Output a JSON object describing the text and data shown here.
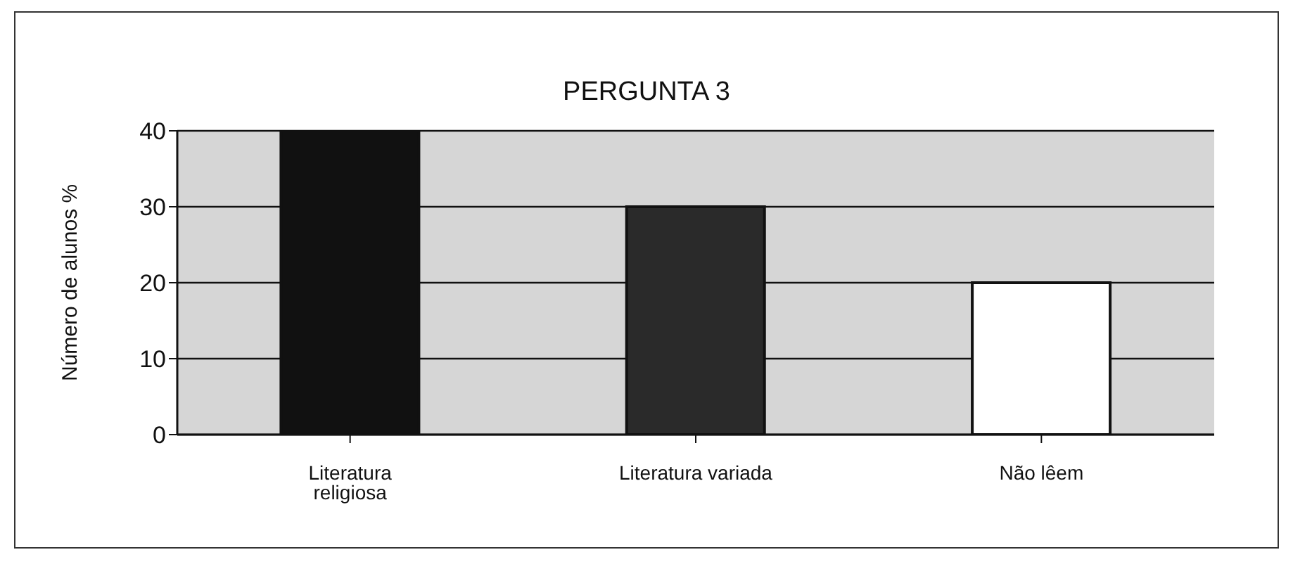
{
  "chart_data": {
    "type": "bar",
    "title": "PERGUNTA 3",
    "ylabel": "Número de alunos %",
    "categories": [
      "Literatura religiosa",
      "Literatura variada",
      "Não lêem"
    ],
    "values": [
      40,
      30,
      20
    ],
    "colors": [
      "#111111",
      "#2a2a2a",
      "#ffffff"
    ],
    "ylim": [
      0,
      40
    ],
    "yticks": [
      0,
      10,
      20,
      30,
      40
    ],
    "grid": "y"
  }
}
